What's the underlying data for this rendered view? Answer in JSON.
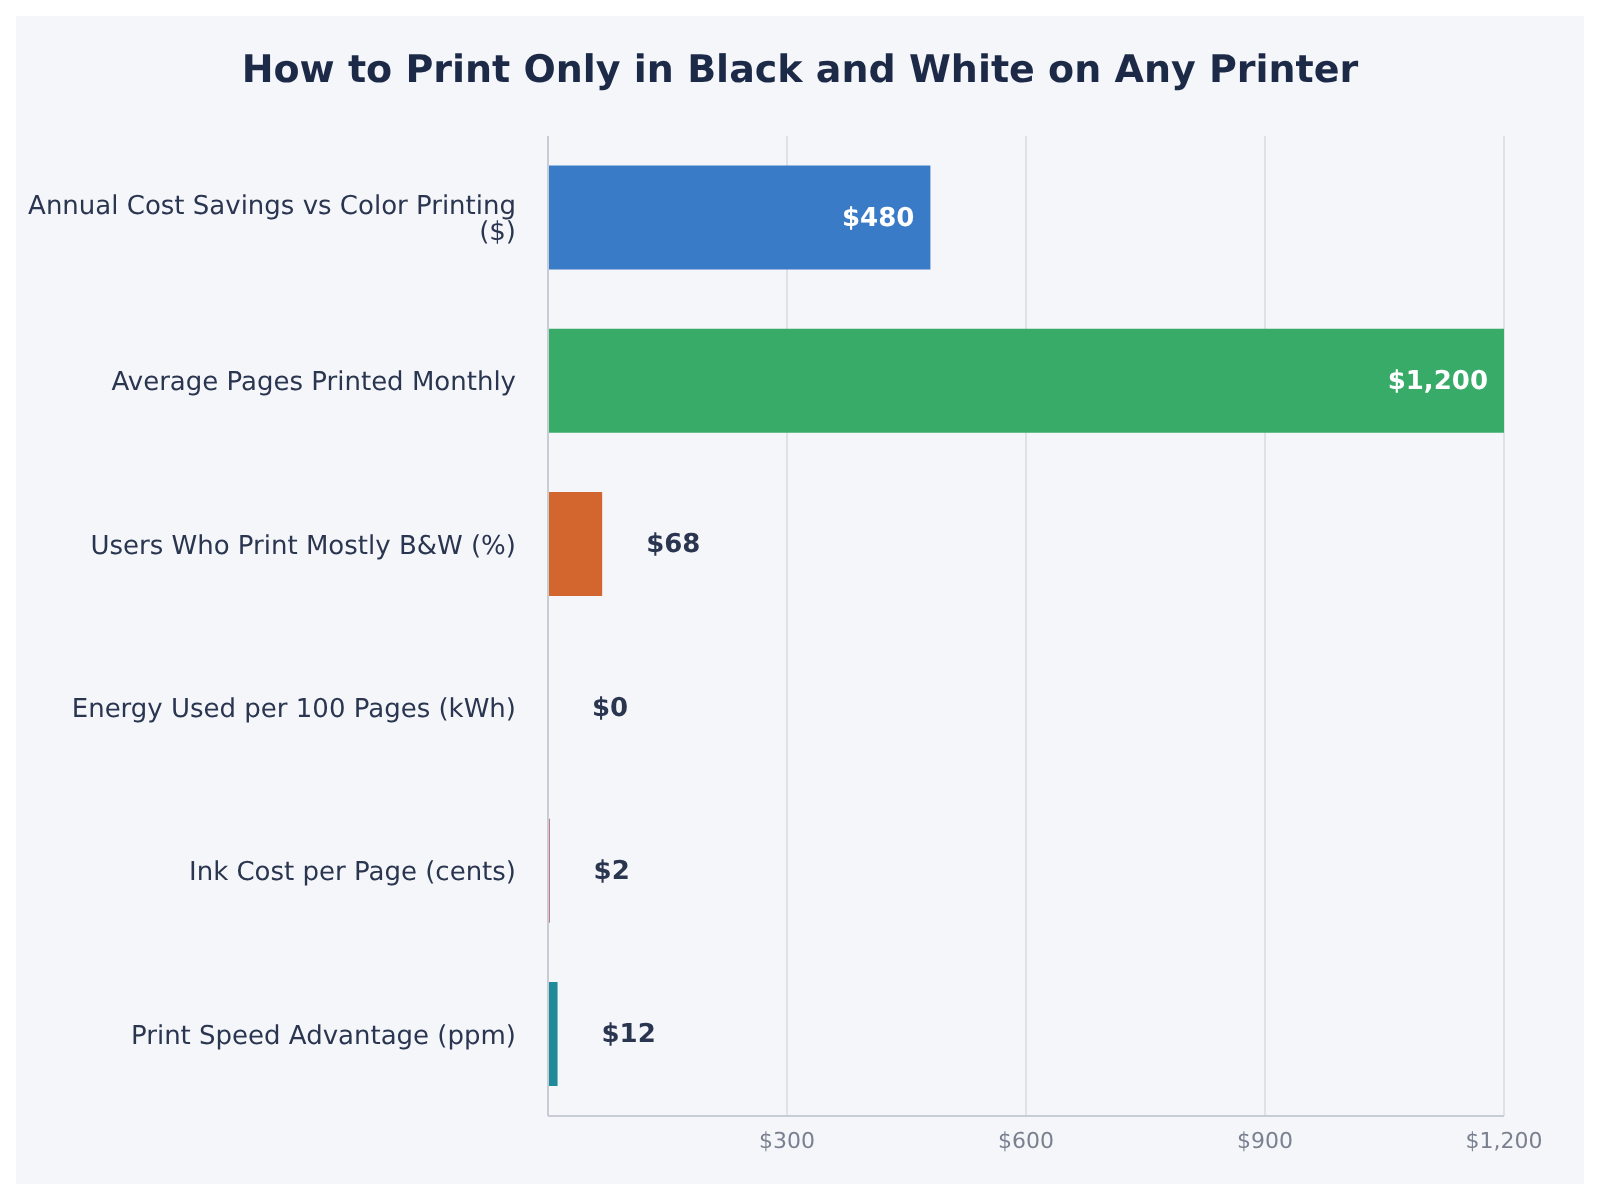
{
  "chart_data": {
    "type": "bar",
    "orientation": "horizontal",
    "title": "How to Print Only in Black and White on Any Printer",
    "categories": [
      "Annual Cost Savings vs Color Printing ($)",
      "Average Pages Printed Monthly",
      "Users Who Print Mostly B&W (%)",
      "Energy Used per 100 Pages (kWh)",
      "Ink Cost per Page (cents)",
      "Print Speed Advantage (ppm)"
    ],
    "values": [
      480,
      1200,
      68,
      0,
      2,
      12
    ],
    "value_labels": [
      "$480",
      "$1,200",
      "$68",
      "$0",
      "$2",
      "$12"
    ],
    "colors": [
      "#3a7bc8",
      "#38ab68",
      "#d2662e",
      "#7b3aa0",
      "#a5282a",
      "#1f8a9a"
    ],
    "xlim": [
      0,
      1200
    ],
    "xticks": [
      {
        "value": 300,
        "label": "$300"
      },
      {
        "value": 600,
        "label": "$600"
      },
      {
        "value": 900,
        "label": "$900"
      },
      {
        "value": 1200,
        "label": "$1,200"
      }
    ],
    "grid": "x"
  }
}
